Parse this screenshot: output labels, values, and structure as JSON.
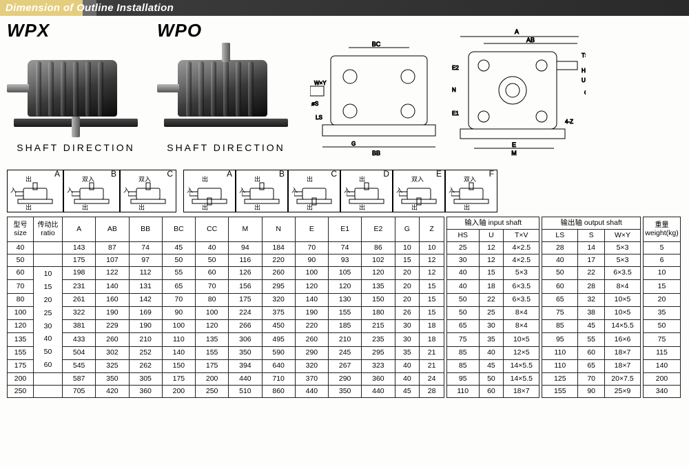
{
  "header_title": "Dimension of Outline Installation",
  "models": [
    {
      "name": "WPX",
      "shaft_label": "SHAFT DIRECTION",
      "vshaft": "down"
    },
    {
      "name": "WPO",
      "shaft_label": "SHAFT DIRECTION",
      "vshaft": "up"
    }
  ],
  "tech_labels": [
    "A",
    "AB",
    "BC",
    "BB",
    "CC",
    "M",
    "N",
    "E",
    "E1",
    "E2",
    "G",
    "4-Z",
    "HS",
    "U",
    "T×V",
    "LS",
    "S",
    "W×Y",
    "øS"
  ],
  "config_groups": [
    {
      "letters": [
        "A",
        "B",
        "C"
      ],
      "cjk_in": "入",
      "cjk_out": "出",
      "cjk_dual": "双入"
    },
    {
      "letters": [
        "A",
        "B",
        "C",
        "D",
        "E",
        "F"
      ],
      "cjk_in": "入",
      "cjk_out": "出",
      "cjk_dual": "双入"
    }
  ],
  "table": {
    "head1": {
      "size": "型号",
      "ratio": "传动比",
      "input": "输入轴 input shaft",
      "output": "输出轴 output shaft",
      "weight": "重量"
    },
    "head2": {
      "size": "size",
      "ratio": "ratio",
      "weight": "weight(kg)"
    },
    "cols_main": [
      "A",
      "AB",
      "BB",
      "BC",
      "CC",
      "M",
      "N",
      "E",
      "E1",
      "E2",
      "G",
      "Z"
    ],
    "cols_in": [
      "HS",
      "U",
      "T×V"
    ],
    "cols_out": [
      "LS",
      "S",
      "W×Y"
    ],
    "ratios": [
      "10",
      "15",
      "20",
      "25",
      "30",
      "40",
      "50",
      "60"
    ],
    "rows": [
      {
        "size": "40",
        "A": "143",
        "AB": "87",
        "BB": "74",
        "BC": "45",
        "CC": "40",
        "M": "94",
        "N": "184",
        "E": "70",
        "E1": "74",
        "E2": "86",
        "G": "10",
        "Z": "10",
        "HS": "25",
        "U": "12",
        "TxV": "4×2.5",
        "LS": "28",
        "S": "14",
        "WxY": "5×3",
        "wt": "5"
      },
      {
        "size": "50",
        "A": "175",
        "AB": "107",
        "BB": "97",
        "BC": "50",
        "CC": "50",
        "M": "116",
        "N": "220",
        "E": "90",
        "E1": "93",
        "E2": "102",
        "G": "15",
        "Z": "12",
        "HS": "30",
        "U": "12",
        "TxV": "4×2.5",
        "LS": "40",
        "S": "17",
        "WxY": "5×3",
        "wt": "6"
      },
      {
        "size": "60",
        "A": "198",
        "AB": "122",
        "BB": "112",
        "BC": "55",
        "CC": "60",
        "M": "126",
        "N": "260",
        "E": "100",
        "E1": "105",
        "E2": "120",
        "G": "20",
        "Z": "12",
        "HS": "40",
        "U": "15",
        "TxV": "5×3",
        "LS": "50",
        "S": "22",
        "WxY": "6×3.5",
        "wt": "10"
      },
      {
        "size": "70",
        "A": "231",
        "AB": "140",
        "BB": "131",
        "BC": "65",
        "CC": "70",
        "M": "156",
        "N": "295",
        "E": "120",
        "E1": "120",
        "E2": "135",
        "G": "20",
        "Z": "15",
        "HS": "40",
        "U": "18",
        "TxV": "6×3.5",
        "LS": "60",
        "S": "28",
        "WxY": "8×4",
        "wt": "15"
      },
      {
        "size": "80",
        "A": "261",
        "AB": "160",
        "BB": "142",
        "BC": "70",
        "CC": "80",
        "M": "175",
        "N": "320",
        "E": "140",
        "E1": "130",
        "E2": "150",
        "G": "20",
        "Z": "15",
        "HS": "50",
        "U": "22",
        "TxV": "6×3.5",
        "LS": "65",
        "S": "32",
        "WxY": "10×5",
        "wt": "20"
      },
      {
        "size": "100",
        "A": "322",
        "AB": "190",
        "BB": "169",
        "BC": "90",
        "CC": "100",
        "M": "224",
        "N": "375",
        "E": "190",
        "E1": "155",
        "E2": "180",
        "G": "26",
        "Z": "15",
        "HS": "50",
        "U": "25",
        "TxV": "8×4",
        "LS": "75",
        "S": "38",
        "WxY": "10×5",
        "wt": "35"
      },
      {
        "size": "120",
        "A": "381",
        "AB": "229",
        "BB": "190",
        "BC": "100",
        "CC": "120",
        "M": "266",
        "N": "450",
        "E": "220",
        "E1": "185",
        "E2": "215",
        "G": "30",
        "Z": "18",
        "HS": "65",
        "U": "30",
        "TxV": "8×4",
        "LS": "85",
        "S": "45",
        "WxY": "14×5.5",
        "wt": "50"
      },
      {
        "size": "135",
        "A": "433",
        "AB": "260",
        "BB": "210",
        "BC": "110",
        "CC": "135",
        "M": "306",
        "N": "495",
        "E": "260",
        "E1": "210",
        "E2": "235",
        "G": "30",
        "Z": "18",
        "HS": "75",
        "U": "35",
        "TxV": "10×5",
        "LS": "95",
        "S": "55",
        "WxY": "16×6",
        "wt": "75"
      },
      {
        "size": "155",
        "A": "504",
        "AB": "302",
        "BB": "252",
        "BC": "140",
        "CC": "155",
        "M": "350",
        "N": "590",
        "E": "290",
        "E1": "245",
        "E2": "295",
        "G": "35",
        "Z": "21",
        "HS": "85",
        "U": "40",
        "TxV": "12×5",
        "LS": "110",
        "S": "60",
        "WxY": "18×7",
        "wt": "115"
      },
      {
        "size": "175",
        "A": "545",
        "AB": "325",
        "BB": "262",
        "BC": "150",
        "CC": "175",
        "M": "394",
        "N": "640",
        "E": "320",
        "E1": "267",
        "E2": "323",
        "G": "40",
        "Z": "21",
        "HS": "85",
        "U": "45",
        "TxV": "14×5.5",
        "LS": "110",
        "S": "65",
        "WxY": "18×7",
        "wt": "140"
      },
      {
        "size": "200",
        "A": "587",
        "AB": "350",
        "BB": "305",
        "BC": "175",
        "CC": "200",
        "M": "440",
        "N": "710",
        "E": "370",
        "E1": "290",
        "E2": "360",
        "G": "40",
        "Z": "24",
        "HS": "95",
        "U": "50",
        "TxV": "14×5.5",
        "LS": "125",
        "S": "70",
        "WxY": "20×7.5",
        "wt": "200"
      },
      {
        "size": "250",
        "A": "705",
        "AB": "420",
        "BB": "360",
        "BC": "200",
        "CC": "250",
        "M": "510",
        "N": "860",
        "E": "440",
        "E1": "350",
        "E2": "440",
        "G": "45",
        "Z": "28",
        "HS": "110",
        "U": "60",
        "TxV": "18×7",
        "LS": "155",
        "S": "90",
        "WxY": "25×9",
        "wt": "340"
      }
    ]
  },
  "colors": {
    "header_gold": "#e5cd7e",
    "header_dark": "#2a2a2a",
    "border": "#222"
  }
}
